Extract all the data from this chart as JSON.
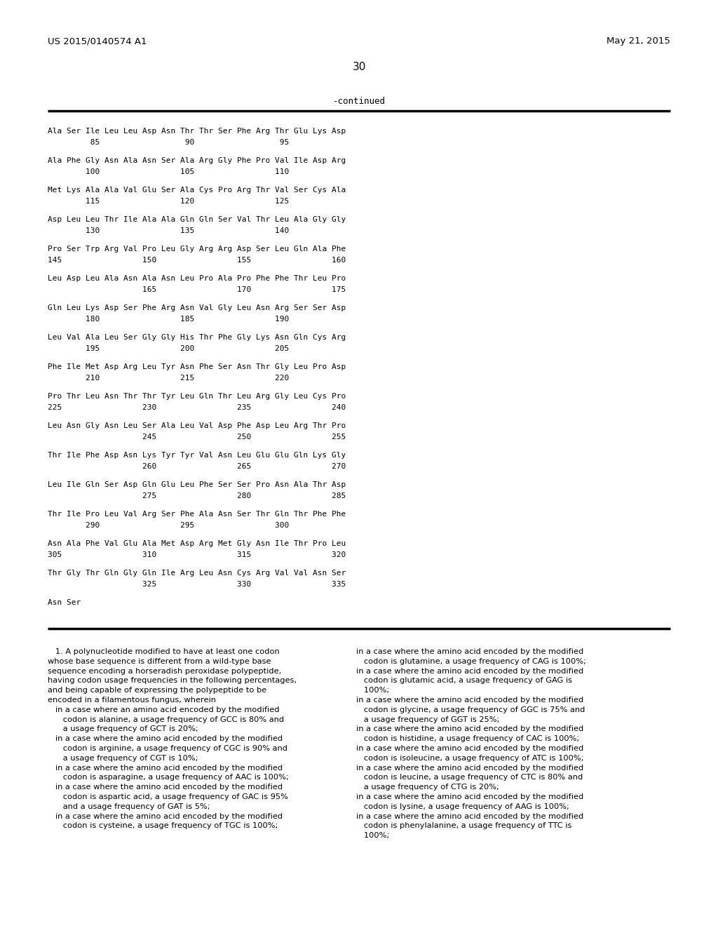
{
  "background_color": "#ffffff",
  "page_header_left": "US 2015/0140574 A1",
  "page_header_right": "May 21, 2015",
  "page_number": "30",
  "continued_label": "-continued",
  "seq_lines": [
    [
      "Ala Ser Ile Leu Leu Asp Asn Thr Thr Ser Phe Arg Thr Glu Lys Asp",
      "         85                  90                  95"
    ],
    [
      "Ala Phe Gly Asn Ala Asn Ser Ala Arg Gly Phe Pro Val Ile Asp Arg",
      "        100                 105                 110"
    ],
    [
      "Met Lys Ala Ala Val Glu Ser Ala Cys Pro Arg Thr Val Ser Cys Ala",
      "        115                 120                 125"
    ],
    [
      "Asp Leu Leu Thr Ile Ala Ala Gln Gln Ser Val Thr Leu Ala Gly Gly",
      "        130                 135                 140"
    ],
    [
      "Pro Ser Trp Arg Val Pro Leu Gly Arg Arg Asp Ser Leu Gln Ala Phe",
      "145                 150                 155                 160"
    ],
    [
      "Leu Asp Leu Ala Asn Ala Asn Leu Pro Ala Pro Phe Phe Thr Leu Pro",
      "                    165                 170                 175"
    ],
    [
      "Gln Leu Lys Asp Ser Phe Arg Asn Val Gly Leu Asn Arg Ser Ser Asp",
      "        180                 185                 190"
    ],
    [
      "Leu Val Ala Leu Ser Gly Gly His Thr Phe Gly Lys Asn Gln Cys Arg",
      "        195                 200                 205"
    ],
    [
      "Phe Ile Met Asp Arg Leu Tyr Asn Phe Ser Asn Thr Gly Leu Pro Asp",
      "        210                 215                 220"
    ],
    [
      "Pro Thr Leu Asn Thr Thr Tyr Leu Gln Thr Leu Arg Gly Leu Cys Pro",
      "225                 230                 235                 240"
    ],
    [
      "Leu Asn Gly Asn Leu Ser Ala Leu Val Asp Phe Asp Leu Arg Thr Pro",
      "                    245                 250                 255"
    ],
    [
      "Thr Ile Phe Asp Asn Lys Tyr Tyr Val Asn Leu Glu Glu Gln Lys Gly",
      "                    260                 265                 270"
    ],
    [
      "Leu Ile Gln Ser Asp Gln Glu Leu Phe Ser Ser Pro Asn Ala Thr Asp",
      "                    275                 280                 285"
    ],
    [
      "Thr Ile Pro Leu Val Arg Ser Phe Ala Asn Ser Thr Gln Thr Phe Phe",
      "        290                 295                 300"
    ],
    [
      "Asn Ala Phe Val Glu Ala Met Asp Arg Met Gly Asn Ile Thr Pro Leu",
      "305                 310                 315                 320"
    ],
    [
      "Thr Gly Thr Gln Gly Gln Ile Arg Leu Asn Cys Arg Val Val Asn Ser",
      "                    325                 330                 335"
    ],
    [
      "Asn Ser",
      ""
    ]
  ],
  "claim_left": [
    "   1. A polynucleotide modified to have at least one codon",
    "whose base sequence is different from a wild-type base",
    "sequence encoding a horseradish peroxidase polypeptide,",
    "having codon usage frequencies in the following percentages,",
    "and being capable of expressing the polypeptide to be",
    "encoded in a filamentous fungus, wherein",
    "   in a case where an amino acid encoded by the modified",
    "      codon is alanine, a usage frequency of GCC is 80% and",
    "      a usage frequency of GCT is 20%;",
    "   in a case where the amino acid encoded by the modified",
    "      codon is arginine, a usage frequency of CGC is 90% and",
    "      a usage frequency of CGT is 10%;",
    "   in a case where the amino acid encoded by the modified",
    "      codon is asparagine, a usage frequency of AAC is 100%;",
    "   in a case where the amino acid encoded by the modified",
    "      codon is aspartic acid, a usage frequency of GAC is 95%",
    "      and a usage frequency of GAT is 5%;",
    "   in a case where the amino acid encoded by the modified",
    "      codon is cysteine, a usage frequency of TGC is 100%;"
  ],
  "claim_right": [
    "in a case where the amino acid encoded by the modified",
    "   codon is glutamine, a usage frequency of CAG is 100%;",
    "in a case where the amino acid encoded by the modified",
    "   codon is glutamic acid, a usage frequency of GAG is",
    "   100%;",
    "in a case where the amino acid encoded by the modified",
    "   codon is glycine, a usage frequency of GGC is 75% and",
    "   a usage frequency of GGT is 25%;",
    "in a case where the amino acid encoded by the modified",
    "   codon is histidine, a usage frequency of CAC is 100%;",
    "in a case where the amino acid encoded by the modified",
    "   codon is isoleucine, a usage frequency of ATC is 100%;",
    "in a case where the amino acid encoded by the modified",
    "   codon is leucine, a usage frequency of CTC is 80% and",
    "   a usage frequency of CTG is 20%;",
    "in a case where the amino acid encoded by the modified",
    "   codon is lysine, a usage frequency of AAG is 100%;",
    "in a case where the amino acid encoded by the modified",
    "   codon is phenylalanine, a usage frequency of TTC is",
    "   100%;"
  ]
}
